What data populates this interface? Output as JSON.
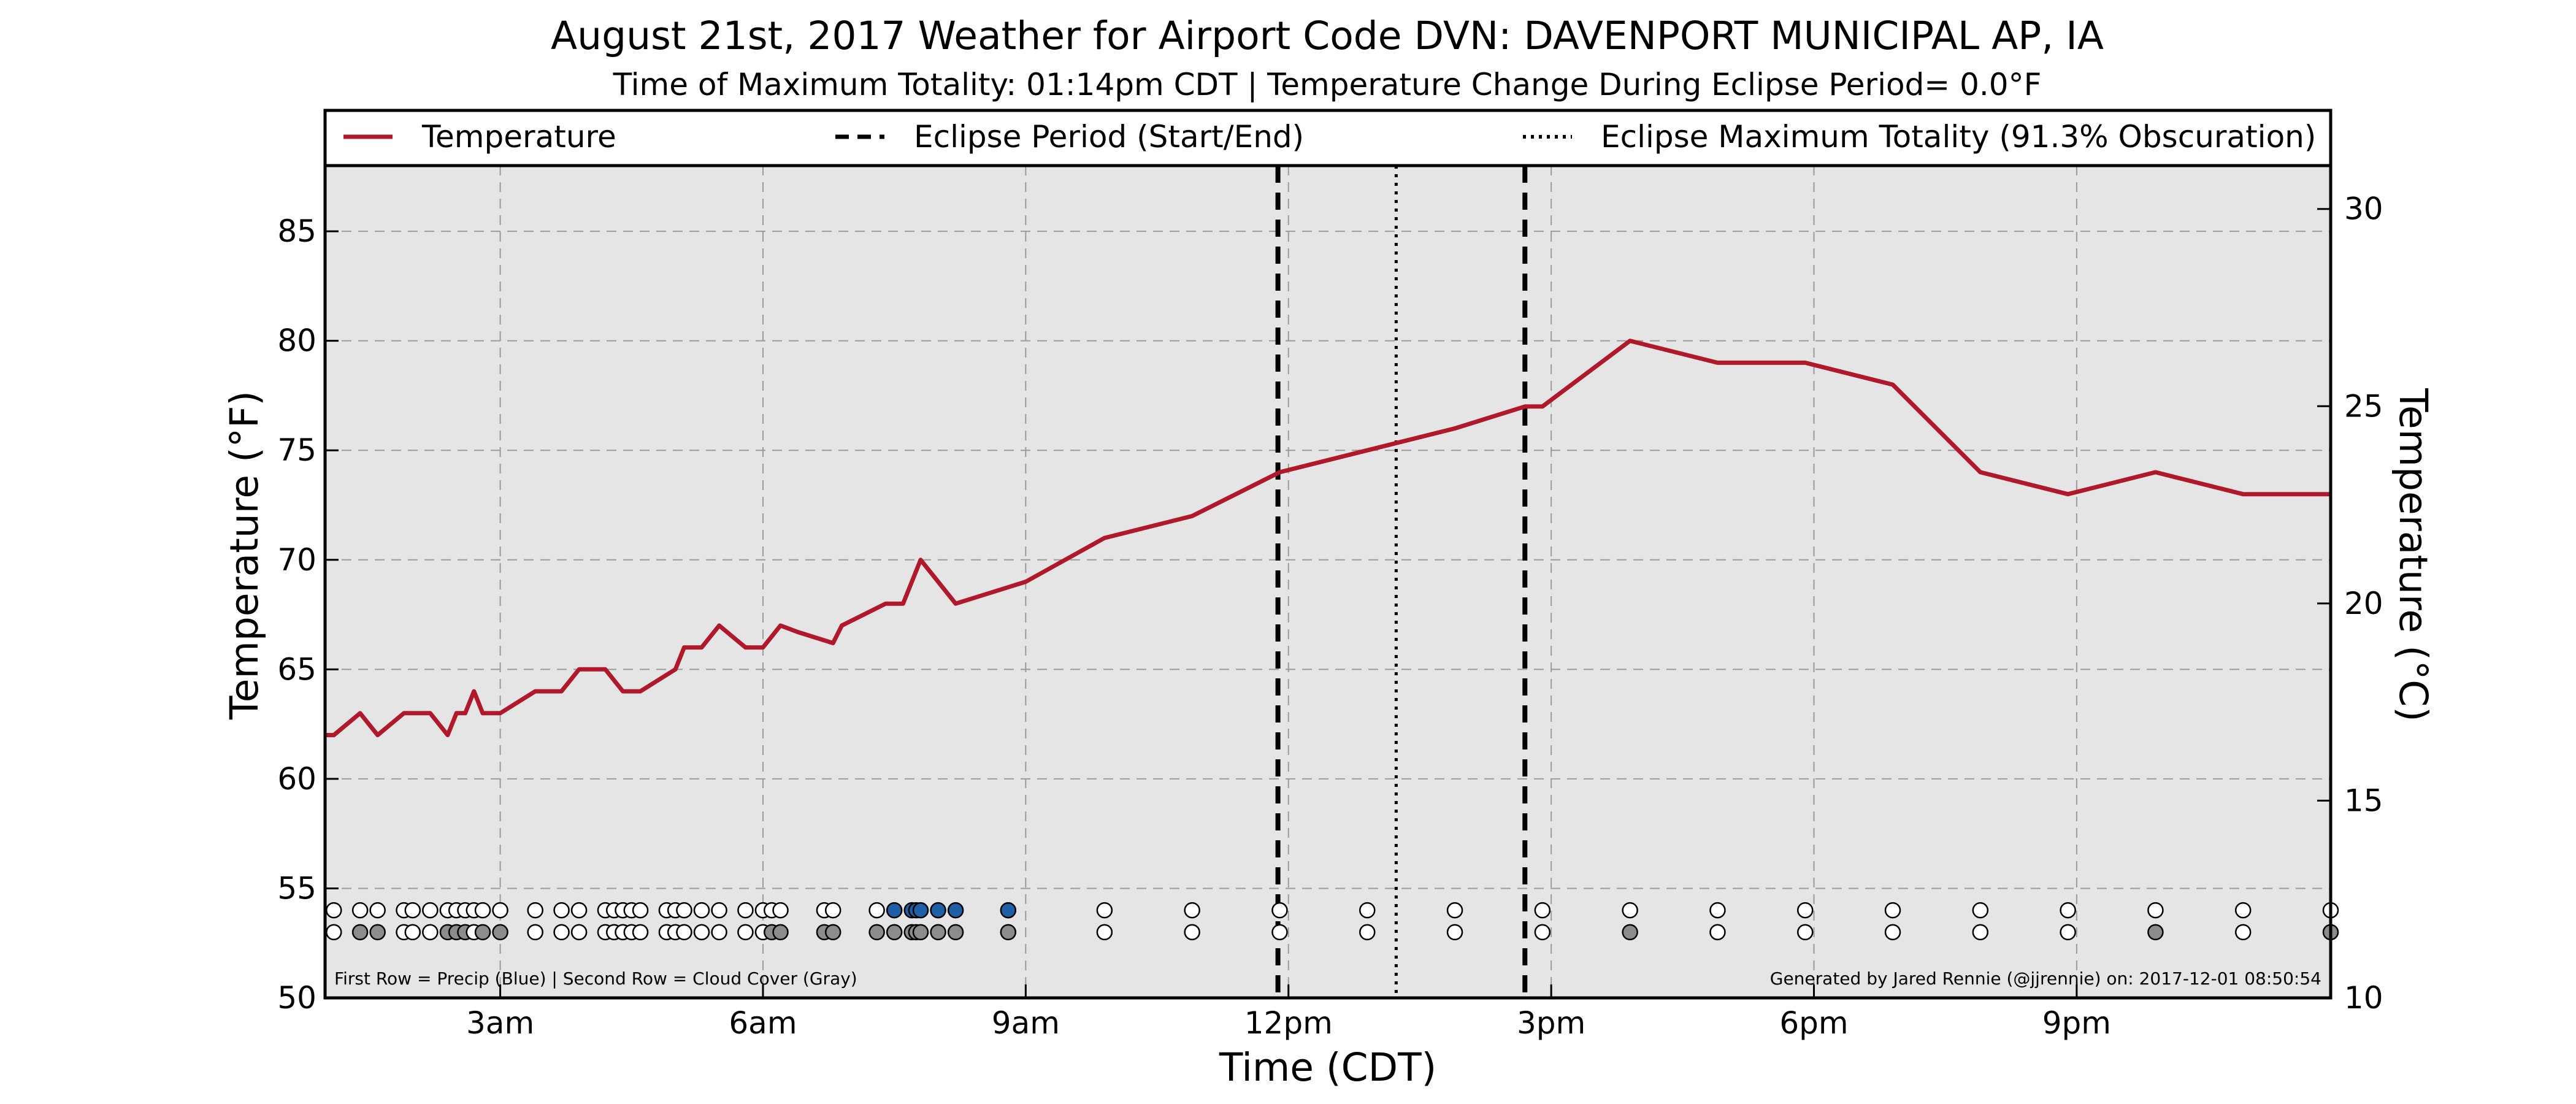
{
  "chart_data": {
    "type": "line",
    "title": "August 21st, 2017 Weather for Airport Code DVN: DAVENPORT MUNICIPAL AP, IA",
    "subtitle": "Time of Maximum Totality: 01:14pm CDT | Temperature Change During Eclipse Period= 0.0°F",
    "xlabel": "Time (CDT)",
    "ylabel": "Temperature (°F)",
    "ylabel_right": "Temperature (°C)",
    "xlim": [
      1.0,
      23.9
    ],
    "ylim": [
      50,
      88
    ],
    "ylim_right": [
      10,
      31.1
    ],
    "x_ticks": [
      {
        "x": 3,
        "label": "3am"
      },
      {
        "x": 6,
        "label": "6am"
      },
      {
        "x": 9,
        "label": "9am"
      },
      {
        "x": 12,
        "label": "12pm"
      },
      {
        "x": 15,
        "label": "3pm"
      },
      {
        "x": 18,
        "label": "6pm"
      },
      {
        "x": 21,
        "label": "9pm"
      }
    ],
    "y_ticks": [
      50,
      55,
      60,
      65,
      70,
      75,
      80,
      85
    ],
    "y_ticks_right": [
      10,
      15,
      20,
      25,
      30
    ],
    "grid": true,
    "legend": {
      "placement": "top",
      "entries": [
        {
          "label": "Temperature",
          "style": "solid",
          "color": "#b0182b"
        },
        {
          "label": "Eclipse Period (Start/End)",
          "style": "dashed",
          "color": "#000000"
        },
        {
          "label": "Eclipse Maximum Totality (91.3% Obscuration)",
          "style": "dotted",
          "color": "#000000"
        }
      ]
    },
    "series": [
      {
        "name": "Temperature",
        "color": "#b0182b",
        "x": [
          1.0,
          1.1,
          1.4,
          1.6,
          1.9,
          2.2,
          2.4,
          2.5,
          2.6,
          2.7,
          2.8,
          3.0,
          3.4,
          3.7,
          3.9,
          4.2,
          4.4,
          4.6,
          5.0,
          5.1,
          5.3,
          5.5,
          5.8,
          6.0,
          6.2,
          6.4,
          6.8,
          6.9,
          7.4,
          7.6,
          7.7,
          7.8,
          8.0,
          8.2,
          9.0,
          9.9,
          10.9,
          11.9,
          12.9,
          13.9,
          14.7,
          14.9,
          15.9,
          16.9,
          17.9,
          18.9,
          19.9,
          20.9,
          21.9,
          22.9,
          23.9
        ],
        "values": [
          62,
          62,
          63,
          62,
          63,
          63,
          62,
          63,
          63,
          64,
          63,
          63,
          64,
          64,
          65,
          65,
          64,
          64,
          65,
          66,
          66,
          67,
          66,
          66,
          67,
          66.7,
          66.2,
          67,
          68,
          68,
          69,
          70,
          69,
          68,
          69,
          71,
          72,
          74,
          75,
          76,
          77,
          77,
          80,
          79,
          79,
          78,
          74,
          73,
          74,
          73,
          73
        ]
      }
    ],
    "eclipse_start": 11.88,
    "eclipse_end": 14.7,
    "eclipse_max": 13.23,
    "precip_row": {
      "y": 54,
      "times": [
        1.1,
        1.4,
        1.6,
        1.9,
        2.0,
        2.2,
        2.4,
        2.5,
        2.6,
        2.7,
        2.8,
        3.0,
        3.4,
        3.7,
        3.9,
        4.2,
        4.3,
        4.4,
        4.5,
        4.6,
        4.9,
        5.0,
        5.1,
        5.3,
        5.5,
        5.8,
        6.0,
        6.1,
        6.2,
        6.7,
        6.8,
        7.3,
        7.5,
        7.7,
        7.75,
        7.8,
        8.0,
        8.2,
        8.8,
        9.9,
        10.9,
        11.9,
        12.9,
        13.9,
        14.9,
        15.9,
        16.9,
        17.9,
        18.9,
        19.9,
        20.9,
        21.9,
        22.9,
        23.9
      ],
      "blue": [
        7.5,
        7.7,
        7.75,
        7.8,
        8.0,
        8.2,
        8.8
      ]
    },
    "cloud_row": {
      "y": 53,
      "times": [
        1.1,
        1.4,
        1.6,
        1.9,
        2.0,
        2.2,
        2.4,
        2.5,
        2.6,
        2.7,
        2.8,
        3.0,
        3.4,
        3.7,
        3.9,
        4.2,
        4.3,
        4.4,
        4.5,
        4.6,
        4.9,
        5.0,
        5.1,
        5.3,
        5.5,
        5.8,
        6.0,
        6.1,
        6.2,
        6.7,
        6.8,
        7.3,
        7.5,
        7.7,
        7.75,
        7.8,
        8.0,
        8.2,
        8.8,
        9.9,
        10.9,
        11.9,
        12.9,
        13.9,
        14.9,
        15.9,
        16.9,
        17.9,
        18.9,
        19.9,
        20.9,
        21.9,
        22.9,
        23.9
      ],
      "gray": [
        1.4,
        1.6,
        2.4,
        2.5,
        2.6,
        2.8,
        3.0,
        6.1,
        6.2,
        6.7,
        6.8,
        7.3,
        7.5,
        7.7,
        7.75,
        7.8,
        8.0,
        8.2,
        8.8,
        15.9,
        21.9,
        23.9
      ]
    },
    "annotation_left": "First Row = Precip (Blue) | Second Row = Cloud Cover (Gray)",
    "annotation_right": "Generated by Jared Rennie (@jjrennie) on: 2017-12-01 08:50:54"
  }
}
